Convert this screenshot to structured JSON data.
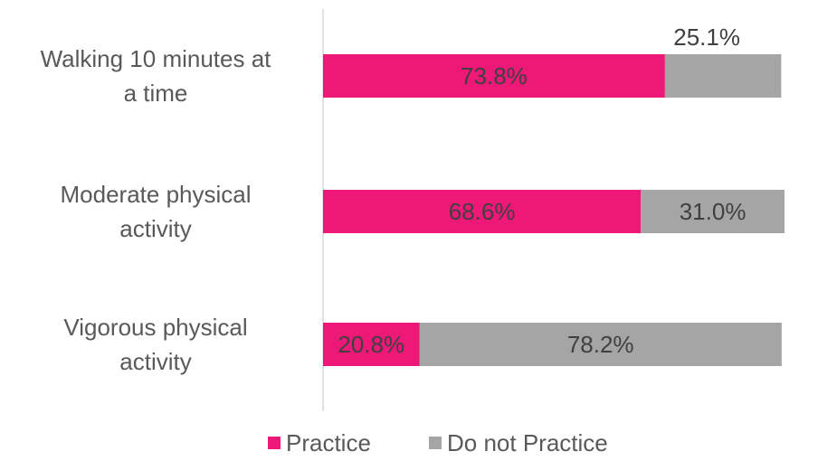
{
  "chart_data": {
    "type": "bar",
    "orientation": "horizontal",
    "stacked": true,
    "categories": [
      [
        "Walking 10 minutes at",
        "a time"
      ],
      [
        "Moderate physical",
        "activity"
      ],
      [
        "Vigorous physical",
        "activity"
      ]
    ],
    "series": [
      {
        "name": "Practice",
        "color": "#EE1879",
        "values": [
          73.8,
          68.6,
          20.8
        ],
        "labels": [
          "73.8%",
          "68.6%",
          "20.8%"
        ]
      },
      {
        "name": "Do not Practice",
        "color": "#A5A5A5",
        "values": [
          25.1,
          31.0,
          78.2
        ],
        "labels": [
          "25.1%",
          "31.0%",
          "78.2%"
        ]
      }
    ],
    "xlim": [
      0,
      100
    ],
    "grid": false,
    "legend": "bottom"
  }
}
